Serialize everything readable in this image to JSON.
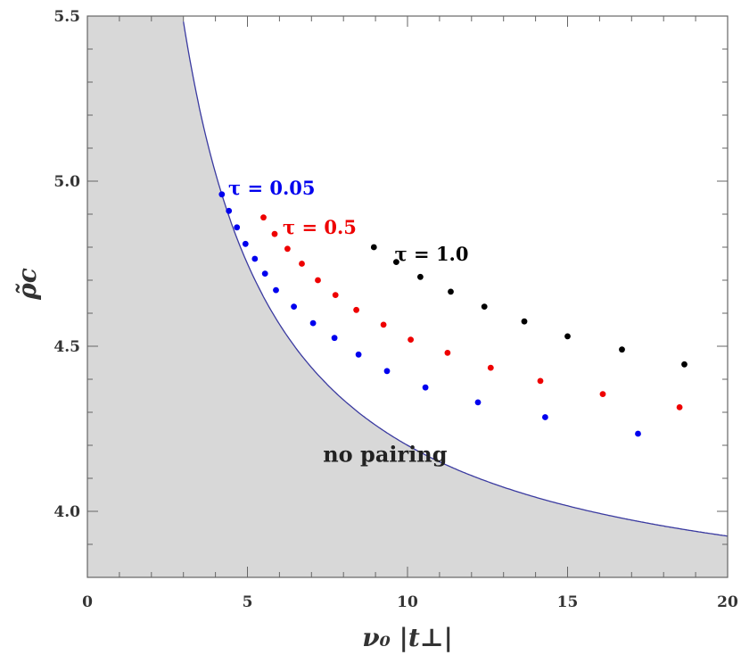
{
  "chart_data": {
    "type": "scatter",
    "title": "",
    "xlabel": "ν₀ |t⊥|",
    "ylabel": "ρ̃c",
    "xlim": [
      0,
      20
    ],
    "ylim": [
      3.8,
      5.5
    ],
    "x_ticks": [
      0,
      5,
      10,
      15,
      20
    ],
    "y_ticks": [
      4.0,
      4.5,
      5.0,
      5.5
    ],
    "x_tick_labels": [
      "0",
      "5",
      "10",
      "15",
      "20"
    ],
    "y_tick_labels": [
      "4.0",
      "4.5",
      "5.0",
      "5.5"
    ],
    "grid": false,
    "boundary_curve": {
      "color": "#3a3aa0",
      "shaded_color": "#d8d8d8",
      "formula_note": "ρ = 3.65 + 5.50 / x",
      "a": 3.65,
      "b": 5.5
    },
    "region_label": "no pairing",
    "series": [
      {
        "name": "τ = 0.05",
        "color": "#0000ee",
        "x": [
          4.2,
          4.42,
          4.67,
          4.94,
          5.23,
          5.55,
          5.89,
          6.45,
          7.05,
          7.72,
          8.47,
          9.36,
          10.56,
          12.2,
          14.3,
          17.2
        ],
        "y": [
          4.96,
          4.91,
          4.86,
          4.81,
          4.765,
          4.72,
          4.67,
          4.62,
          4.57,
          4.525,
          4.475,
          4.425,
          4.375,
          4.33,
          4.285,
          4.235
        ]
      },
      {
        "name": "τ = 0.5",
        "color": "#ee0000",
        "x": [
          5.5,
          5.85,
          6.25,
          6.7,
          7.2,
          7.75,
          8.4,
          9.25,
          10.1,
          11.25,
          12.6,
          14.15,
          16.1,
          18.5
        ],
        "y": [
          4.89,
          4.84,
          4.795,
          4.75,
          4.7,
          4.655,
          4.61,
          4.565,
          4.52,
          4.48,
          4.435,
          4.395,
          4.355,
          4.315
        ]
      },
      {
        "name": "τ = 1.0",
        "color": "#000000",
        "x": [
          8.95,
          9.65,
          10.4,
          11.35,
          12.4,
          13.65,
          15.0,
          16.7,
          18.65
        ],
        "y": [
          4.8,
          4.755,
          4.71,
          4.665,
          4.62,
          4.575,
          4.53,
          4.49,
          4.445
        ]
      }
    ],
    "annotations": [
      {
        "text": "τ = 0.05",
        "color": "#0000ee",
        "x": 4.4,
        "y": 4.96
      },
      {
        "text": "τ = 0.5",
        "color": "#ee0000",
        "x": 6.1,
        "y": 4.84
      },
      {
        "text": "τ = 1.0",
        "color": "#000000",
        "x": 9.6,
        "y": 4.76
      }
    ]
  }
}
